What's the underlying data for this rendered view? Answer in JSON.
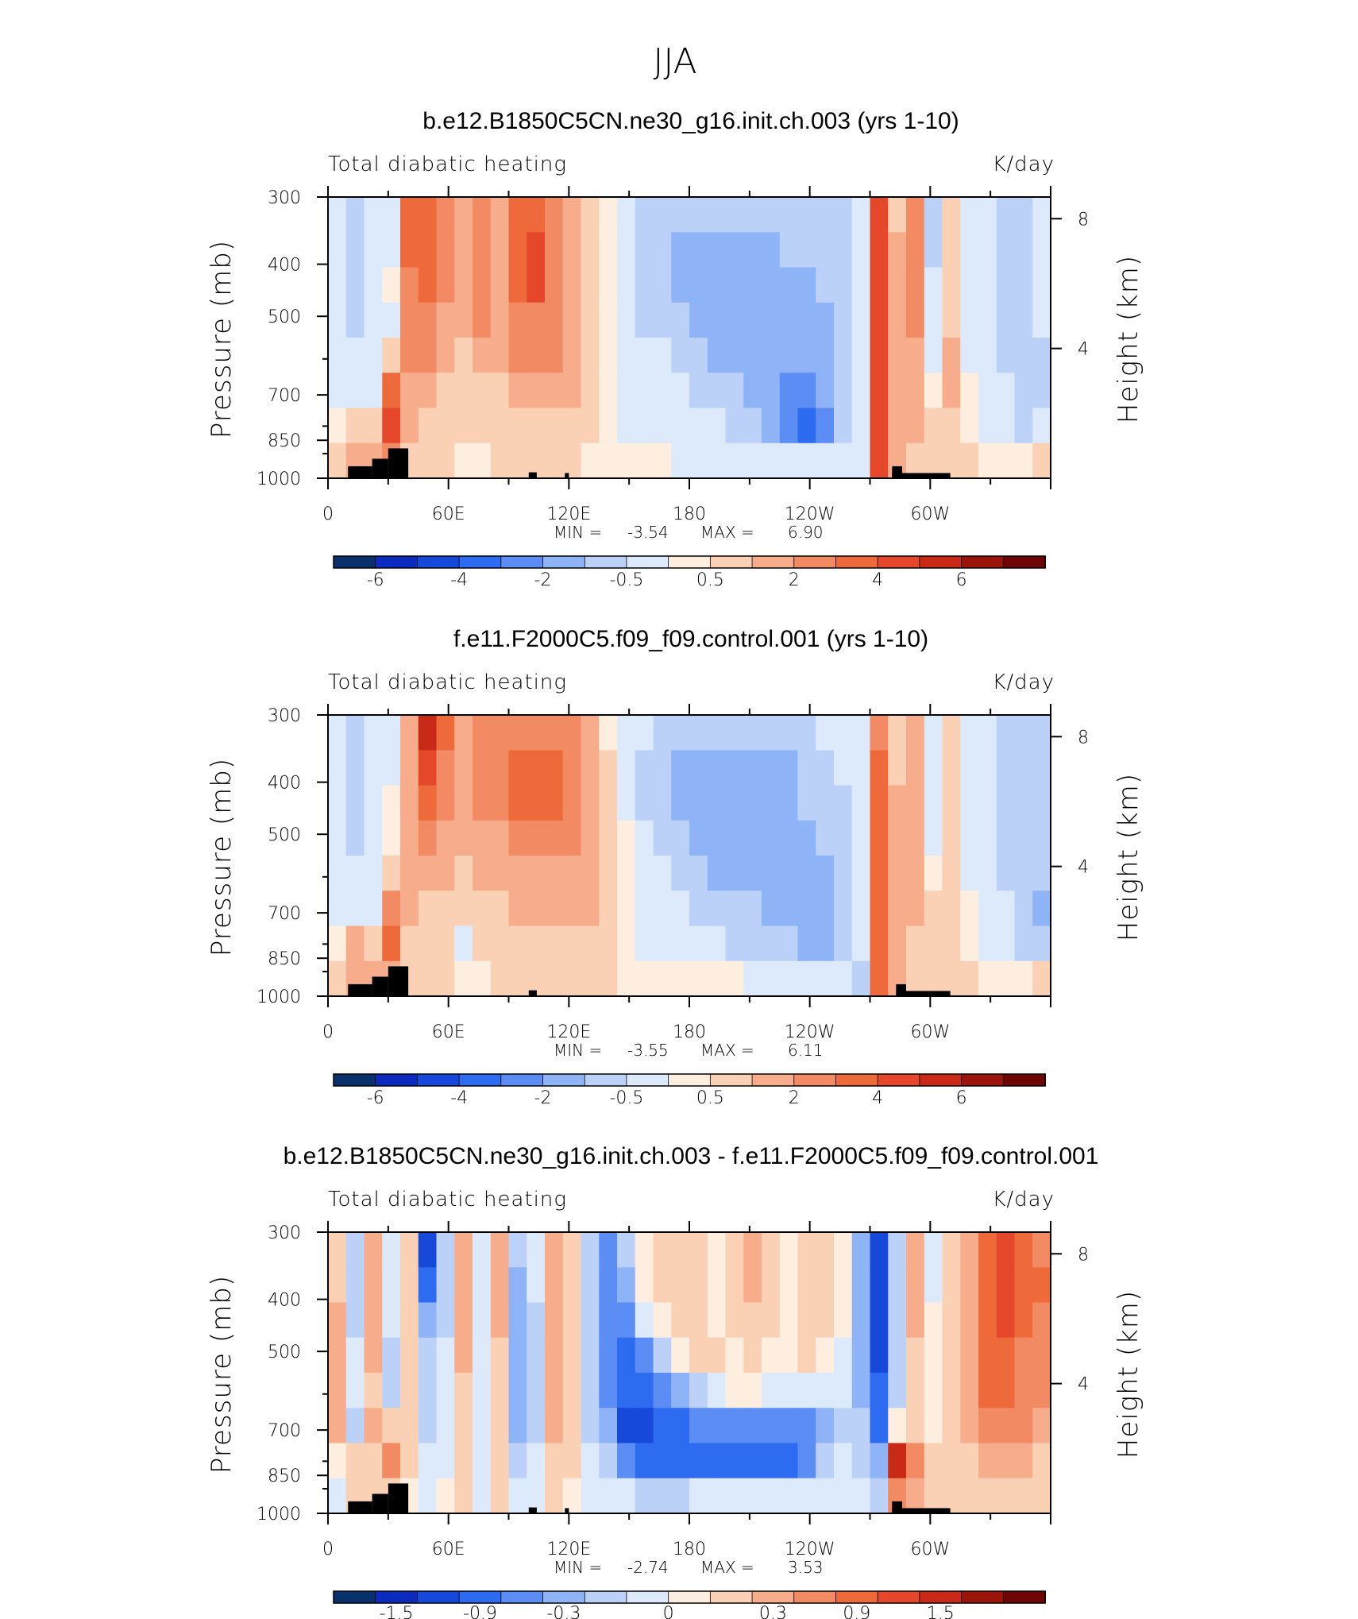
{
  "figure_title": "JJA",
  "colors": {
    "heating": [
      "#08306b",
      "#0a2bbd",
      "#1649d9",
      "#2d6bf0",
      "#5b8df4",
      "#8fb3f7",
      "#bcd1f8",
      "#ddeafb",
      "#fdeee0",
      "#fbd1b5",
      "#f7ad8c",
      "#f28a63",
      "#ef6a3b",
      "#e4472a",
      "#c82a17",
      "#9b1409",
      "#6e0606"
    ],
    "land": "#000000"
  },
  "chart_data": [
    {
      "type": "heatmap",
      "title": "b.e12.B1850C5CN.ne30_g16.init.ch.003 (yrs 1-10)",
      "left_label": "Total diabatic heating",
      "units": "K/day",
      "ylabel": "Pressure (mb)",
      "ylabel_right": "Height (km)",
      "y_ticks": [
        "300",
        "400",
        "500",
        "700",
        "850",
        "1000"
      ],
      "y_tick_values": [
        300,
        400,
        500,
        700,
        850,
        1000
      ],
      "height_ticks": [
        "8",
        "4"
      ],
      "height_tick_values": [
        8,
        4
      ],
      "x_ticks": [
        "0",
        "60E",
        "120E",
        "180",
        "120W",
        "60W"
      ],
      "x_tick_values": [
        0,
        60,
        120,
        180,
        240,
        300
      ],
      "xlim": [
        0,
        360
      ],
      "ylim": [
        1000,
        300
      ],
      "min_label": "MIN =",
      "min_value": "-3.54",
      "max_label": "MAX =",
      "max_value": "6.90",
      "colorbar_labels": [
        "-6",
        "-4",
        "-2",
        "-0.5",
        "0.5",
        "2",
        "4",
        "6"
      ],
      "colorbar_label_index": [
        1,
        3,
        5,
        7,
        9,
        11,
        13,
        15
      ],
      "field": [
        [
          -1,
          -2,
          -1,
          -1,
          4,
          4,
          3,
          2,
          3,
          2,
          4,
          4,
          3,
          2,
          1,
          0,
          -1,
          -2,
          -2,
          -2,
          -2,
          -2,
          -2,
          -2,
          -2,
          -2,
          -2,
          -2,
          -2,
          -1,
          5,
          1,
          3,
          -2,
          1,
          -1,
          -1,
          -2,
          -2,
          -1
        ],
        [
          -1,
          -2,
          -1,
          -1,
          4,
          4,
          3,
          2,
          3,
          2,
          4,
          5,
          3,
          2,
          1,
          0,
          -1,
          -2,
          -2,
          -3,
          -3,
          -3,
          -3,
          -3,
          -3,
          -2,
          -2,
          -2,
          -2,
          -1,
          5,
          2,
          3,
          -2,
          1,
          -1,
          -1,
          -2,
          -2,
          -1
        ],
        [
          -1,
          -2,
          -1,
          0,
          3,
          4,
          3,
          2,
          3,
          2,
          4,
          5,
          3,
          2,
          1,
          0,
          -1,
          -2,
          -2,
          -3,
          -3,
          -3,
          -3,
          -3,
          -3,
          -3,
          -3,
          -2,
          -2,
          -1,
          5,
          2,
          3,
          -1,
          1,
          -1,
          -1,
          -2,
          -2,
          -1
        ],
        [
          -1,
          -2,
          -1,
          -1,
          3,
          3,
          2,
          2,
          3,
          2,
          3,
          3,
          3,
          2,
          1,
          0,
          -1,
          -2,
          -2,
          -2,
          -3,
          -3,
          -3,
          -3,
          -3,
          -3,
          -3,
          -3,
          -2,
          -1,
          5,
          2,
          3,
          -1,
          1,
          -1,
          -1,
          -2,
          -2,
          -1
        ],
        [
          -1,
          -1,
          -1,
          1,
          3,
          3,
          2,
          1,
          2,
          2,
          3,
          3,
          3,
          2,
          1,
          0,
          -1,
          -1,
          -1,
          -2,
          -2,
          -3,
          -3,
          -3,
          -3,
          -3,
          -3,
          -3,
          -2,
          -1,
          5,
          2,
          2,
          -1,
          2,
          -1,
          -1,
          -2,
          -2,
          -2
        ],
        [
          -1,
          -1,
          -1,
          4,
          2,
          2,
          1,
          1,
          1,
          1,
          2,
          2,
          2,
          2,
          1,
          0,
          -1,
          -1,
          -1,
          -1,
          -2,
          -2,
          -2,
          -3,
          -3,
          -4,
          -4,
          -3,
          -2,
          -1,
          5,
          2,
          2,
          0,
          2,
          0,
          -1,
          -1,
          -2,
          -2
        ],
        [
          0,
          1,
          1,
          5,
          2,
          1,
          1,
          1,
          1,
          1,
          1,
          1,
          1,
          1,
          1,
          0,
          -1,
          -1,
          -1,
          -1,
          -1,
          -1,
          -2,
          -2,
          -3,
          -4,
          -5,
          -4,
          -2,
          -1,
          5,
          2,
          2,
          1,
          1,
          0,
          -1,
          -1,
          -2,
          -1
        ],
        [
          1,
          2,
          2,
          3,
          1,
          1,
          1,
          0,
          0,
          1,
          1,
          1,
          1,
          1,
          0,
          0,
          0,
          0,
          0,
          -1,
          -1,
          -1,
          -1,
          -1,
          -1,
          -1,
          -1,
          -1,
          -1,
          -1,
          5,
          2,
          1,
          1,
          1,
          1,
          0,
          0,
          0,
          1
        ]
      ],
      "land": [
        {
          "lon_start": 10,
          "lon_end": 22,
          "top_mb": 950
        },
        {
          "lon_start": 22,
          "lon_end": 30,
          "top_mb": 920
        },
        {
          "lon_start": 30,
          "lon_end": 40,
          "top_mb": 880
        },
        {
          "lon_start": 100,
          "lon_end": 104,
          "top_mb": 975
        },
        {
          "lon_start": 118,
          "lon_end": 120,
          "top_mb": 978
        },
        {
          "lon_start": 281,
          "lon_end": 286,
          "top_mb": 950
        },
        {
          "lon_start": 281,
          "lon_end": 310,
          "top_mb": 978
        }
      ]
    },
    {
      "type": "heatmap",
      "title": "f.e11.F2000C5.f09_f09.control.001 (yrs 1-10)",
      "left_label": "Total diabatic heating",
      "units": "K/day",
      "ylabel": "Pressure (mb)",
      "ylabel_right": "Height (km)",
      "y_ticks": [
        "300",
        "400",
        "500",
        "700",
        "850",
        "1000"
      ],
      "y_tick_values": [
        300,
        400,
        500,
        700,
        850,
        1000
      ],
      "height_ticks": [
        "8",
        "4"
      ],
      "height_tick_values": [
        8,
        4
      ],
      "x_ticks": [
        "0",
        "60E",
        "120E",
        "180",
        "120W",
        "60W"
      ],
      "x_tick_values": [
        0,
        60,
        120,
        180,
        240,
        300
      ],
      "xlim": [
        0,
        360
      ],
      "ylim": [
        1000,
        300
      ],
      "min_label": "MIN =",
      "min_value": "-3.55",
      "max_label": "MAX =",
      "max_value": "6.11",
      "colorbar_labels": [
        "-6",
        "-4",
        "-2",
        "-0.5",
        "0.5",
        "2",
        "4",
        "6"
      ],
      "colorbar_label_index": [
        1,
        3,
        5,
        7,
        9,
        11,
        13,
        15
      ],
      "field": [
        [
          -1,
          -2,
          -1,
          -1,
          2,
          6,
          4,
          2,
          3,
          3,
          3,
          3,
          3,
          3,
          2,
          0,
          -1,
          -1,
          -2,
          -2,
          -2,
          -2,
          -2,
          -2,
          -2,
          -2,
          -2,
          -1,
          -1,
          -1,
          3,
          1,
          2,
          -1,
          1,
          -1,
          -1,
          -2,
          -2,
          -2
        ],
        [
          -1,
          -2,
          -1,
          -1,
          2,
          5,
          3,
          2,
          3,
          3,
          4,
          4,
          4,
          3,
          2,
          1,
          -1,
          -2,
          -2,
          -3,
          -3,
          -3,
          -3,
          -3,
          -3,
          -3,
          -2,
          -2,
          -1,
          -1,
          4,
          1,
          2,
          -1,
          1,
          -1,
          -1,
          -2,
          -2,
          -2
        ],
        [
          -1,
          -2,
          -1,
          0,
          2,
          4,
          3,
          2,
          3,
          3,
          4,
          4,
          4,
          3,
          2,
          1,
          -1,
          -2,
          -2,
          -3,
          -3,
          -3,
          -3,
          -3,
          -3,
          -3,
          -2,
          -2,
          -2,
          -1,
          4,
          2,
          2,
          -1,
          1,
          -1,
          -1,
          -2,
          -2,
          -2
        ],
        [
          -1,
          -2,
          -1,
          0,
          2,
          3,
          2,
          2,
          2,
          2,
          3,
          3,
          3,
          3,
          2,
          1,
          0,
          -1,
          -2,
          -2,
          -3,
          -3,
          -3,
          -3,
          -3,
          -3,
          -3,
          -2,
          -2,
          -1,
          4,
          2,
          2,
          -1,
          1,
          -1,
          -1,
          -2,
          -2,
          -2
        ],
        [
          -1,
          -1,
          -1,
          1,
          2,
          2,
          2,
          1,
          2,
          2,
          2,
          2,
          2,
          2,
          2,
          1,
          0,
          -1,
          -1,
          -2,
          -2,
          -3,
          -3,
          -3,
          -3,
          -3,
          -3,
          -3,
          -2,
          -1,
          4,
          2,
          2,
          0,
          1,
          -1,
          -1,
          -2,
          -2,
          -2
        ],
        [
          -1,
          -1,
          -1,
          3,
          2,
          1,
          1,
          1,
          1,
          1,
          2,
          2,
          2,
          2,
          2,
          1,
          0,
          -1,
          -1,
          -1,
          -2,
          -2,
          -2,
          -2,
          -3,
          -3,
          -3,
          -3,
          -2,
          -1,
          4,
          2,
          2,
          1,
          1,
          0,
          -1,
          -1,
          -2,
          -3
        ],
        [
          0,
          2,
          1,
          4,
          1,
          1,
          1,
          -1,
          1,
          1,
          1,
          1,
          1,
          1,
          1,
          1,
          0,
          -1,
          -1,
          -1,
          -1,
          -1,
          -2,
          -2,
          -2,
          -2,
          -3,
          -3,
          -2,
          -1,
          4,
          2,
          1,
          1,
          1,
          0,
          -1,
          -1,
          -2,
          -2
        ],
        [
          1,
          2,
          2,
          2,
          1,
          1,
          1,
          0,
          0,
          1,
          1,
          1,
          1,
          1,
          1,
          1,
          0,
          0,
          0,
          0,
          0,
          0,
          0,
          -1,
          -1,
          -1,
          -1,
          -1,
          -1,
          -2,
          4,
          2,
          1,
          1,
          1,
          1,
          0,
          0,
          0,
          1
        ]
      ],
      "land": [
        {
          "lon_start": 10,
          "lon_end": 22,
          "top_mb": 950
        },
        {
          "lon_start": 22,
          "lon_end": 30,
          "top_mb": 920
        },
        {
          "lon_start": 30,
          "lon_end": 40,
          "top_mb": 880
        },
        {
          "lon_start": 100,
          "lon_end": 104,
          "top_mb": 975
        },
        {
          "lon_start": 283,
          "lon_end": 288,
          "top_mb": 950
        },
        {
          "lon_start": 283,
          "lon_end": 310,
          "top_mb": 978
        }
      ]
    },
    {
      "type": "heatmap",
      "title": "b.e12.B1850C5CN.ne30_g16.init.ch.003 - f.e11.F2000C5.f09_f09.control.001",
      "left_label": "Total diabatic heating",
      "units": "K/day",
      "ylabel": "Pressure (mb)",
      "ylabel_right": "Height (km)",
      "y_ticks": [
        "300",
        "400",
        "500",
        "700",
        "850",
        "1000"
      ],
      "y_tick_values": [
        300,
        400,
        500,
        700,
        850,
        1000
      ],
      "height_ticks": [
        "8",
        "4"
      ],
      "height_tick_values": [
        8,
        4
      ],
      "x_ticks": [
        "0",
        "60E",
        "120E",
        "180",
        "120W",
        "60W"
      ],
      "x_tick_values": [
        0,
        60,
        120,
        180,
        240,
        300
      ],
      "xlim": [
        0,
        360
      ],
      "ylim": [
        1000,
        300
      ],
      "min_label": "MIN =",
      "min_value": "-2.74",
      "max_label": "MAX =",
      "max_value": "3.53",
      "colorbar_labels": [
        "-1.5",
        "-0.9",
        "-0.3",
        "0",
        "0.3",
        "0.9",
        "1.5"
      ],
      "colorbar_label_index": [
        1.5,
        3.5,
        5.5,
        8,
        10.5,
        12.5,
        14.5
      ],
      "field": [
        [
          1,
          -2,
          2,
          -1,
          1,
          -6,
          -2,
          2,
          -1,
          2,
          -2,
          -1,
          2,
          1,
          -2,
          -4,
          -2,
          0,
          1,
          1,
          1,
          0,
          1,
          2,
          1,
          0,
          1,
          1,
          0,
          -3,
          -6,
          -2,
          2,
          -1,
          1,
          2,
          4,
          5,
          4,
          3
        ],
        [
          1,
          -2,
          2,
          -1,
          1,
          -5,
          -2,
          2,
          -1,
          2,
          -3,
          -1,
          2,
          1,
          -2,
          -4,
          -3,
          0,
          1,
          1,
          1,
          0,
          1,
          2,
          1,
          0,
          1,
          1,
          0,
          -3,
          -6,
          -2,
          2,
          -1,
          1,
          2,
          4,
          5,
          4,
          4
        ],
        [
          2,
          -2,
          2,
          -1,
          1,
          -3,
          -2,
          2,
          -1,
          2,
          -3,
          -2,
          2,
          1,
          -2,
          -4,
          -4,
          -1,
          0,
          1,
          1,
          0,
          1,
          1,
          1,
          0,
          1,
          1,
          0,
          -3,
          -6,
          -2,
          2,
          0,
          1,
          2,
          4,
          5,
          4,
          3
        ],
        [
          2,
          -1,
          2,
          -2,
          1,
          -2,
          -1,
          2,
          -1,
          1,
          -3,
          -2,
          2,
          1,
          -2,
          -4,
          -5,
          -4,
          -2,
          0,
          1,
          1,
          0,
          1,
          0,
          0,
          1,
          0,
          -1,
          -3,
          -6,
          -2,
          1,
          0,
          1,
          2,
          4,
          4,
          3,
          3
        ],
        [
          2,
          -1,
          1,
          -2,
          1,
          -2,
          -1,
          1,
          -1,
          1,
          -3,
          -2,
          2,
          1,
          -2,
          -4,
          -5,
          -5,
          -4,
          -3,
          -2,
          -1,
          0,
          0,
          -1,
          -1,
          -1,
          -1,
          -1,
          -3,
          -5,
          -2,
          1,
          0,
          1,
          2,
          4,
          4,
          3,
          3
        ],
        [
          2,
          -2,
          2,
          1,
          1,
          -2,
          -1,
          1,
          -1,
          1,
          -3,
          -2,
          2,
          1,
          -2,
          -3,
          -6,
          -6,
          -5,
          -5,
          -4,
          -4,
          -4,
          -4,
          -4,
          -4,
          -4,
          -3,
          -2,
          -2,
          -5,
          0,
          1,
          0,
          1,
          2,
          3,
          3,
          3,
          2
        ],
        [
          0,
          1,
          1,
          3,
          1,
          -1,
          -1,
          1,
          -1,
          1,
          -2,
          -1,
          1,
          1,
          -1,
          -2,
          -4,
          -5,
          -5,
          -5,
          -5,
          -5,
          -5,
          -5,
          -5,
          -5,
          -4,
          -2,
          -1,
          -2,
          -3,
          6,
          3,
          1,
          1,
          1,
          2,
          2,
          2,
          1
        ],
        [
          -1,
          1,
          1,
          1,
          0,
          -1,
          0,
          1,
          -1,
          1,
          -1,
          -1,
          1,
          0,
          -1,
          -1,
          -1,
          -2,
          -2,
          -2,
          -1,
          -1,
          -1,
          -1,
          -1,
          -1,
          -1,
          -1,
          -1,
          -1,
          -2,
          3,
          2,
          1,
          1,
          1,
          1,
          1,
          1,
          1
        ]
      ],
      "land": [
        {
          "lon_start": 10,
          "lon_end": 22,
          "top_mb": 950
        },
        {
          "lon_start": 22,
          "lon_end": 30,
          "top_mb": 920
        },
        {
          "lon_start": 30,
          "lon_end": 40,
          "top_mb": 880
        },
        {
          "lon_start": 100,
          "lon_end": 104,
          "top_mb": 975
        },
        {
          "lon_start": 118,
          "lon_end": 120,
          "top_mb": 978
        },
        {
          "lon_start": 281,
          "lon_end": 286,
          "top_mb": 950
        },
        {
          "lon_start": 281,
          "lon_end": 310,
          "top_mb": 978
        }
      ]
    }
  ]
}
